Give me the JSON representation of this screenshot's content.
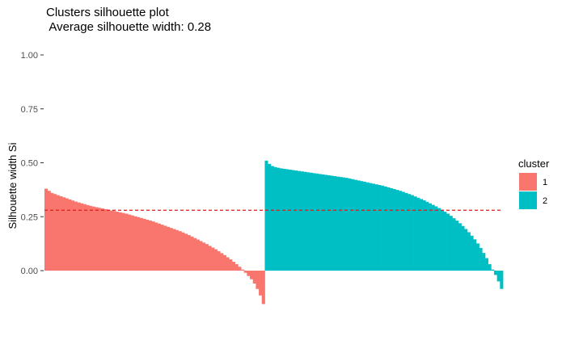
{
  "chart_data": {
    "type": "bar",
    "title": "Clusters silhouette plot",
    "subtitle": " Average silhouette width: 0.28",
    "xlabel": "",
    "ylabel": "Silhouette width Si",
    "ylim": [
      -0.2,
      1.0
    ],
    "yticks": [
      "0.00",
      "0.25",
      "0.50",
      "0.75",
      "1.00"
    ],
    "ytick_values": [
      0.0,
      0.25,
      0.5,
      0.75,
      1.0
    ],
    "grid": false,
    "reference_line": {
      "value": 0.28,
      "style": "dashed",
      "color": "#e41a1c"
    },
    "legend": {
      "title": "cluster",
      "placement": "right"
    },
    "series": [
      {
        "name": "1",
        "color": "#F8766D",
        "values": [
          0.38,
          0.37,
          0.36,
          0.355,
          0.35,
          0.345,
          0.34,
          0.335,
          0.33,
          0.325,
          0.32,
          0.316,
          0.312,
          0.308,
          0.304,
          0.3,
          0.297,
          0.294,
          0.291,
          0.288,
          0.285,
          0.282,
          0.279,
          0.276,
          0.273,
          0.27,
          0.267,
          0.264,
          0.26,
          0.256,
          0.252,
          0.248,
          0.244,
          0.24,
          0.236,
          0.232,
          0.228,
          0.223,
          0.218,
          0.213,
          0.208,
          0.203,
          0.198,
          0.193,
          0.188,
          0.183,
          0.177,
          0.171,
          0.165,
          0.158,
          0.151,
          0.144,
          0.137,
          0.13,
          0.123,
          0.115,
          0.107,
          0.099,
          0.09,
          0.081,
          0.072,
          0.062,
          0.052,
          0.041,
          0.03,
          0.018,
          0.005,
          -0.01,
          -0.025,
          -0.04,
          -0.06,
          -0.085,
          -0.115,
          -0.155
        ]
      },
      {
        "name": "2",
        "color": "#00BFC4",
        "values": [
          0.51,
          0.495,
          0.485,
          0.48,
          0.477,
          0.474,
          0.472,
          0.47,
          0.468,
          0.466,
          0.464,
          0.462,
          0.46,
          0.458,
          0.456,
          0.454,
          0.452,
          0.45,
          0.448,
          0.446,
          0.444,
          0.442,
          0.44,
          0.438,
          0.436,
          0.434,
          0.432,
          0.43,
          0.427,
          0.424,
          0.421,
          0.418,
          0.415,
          0.412,
          0.409,
          0.406,
          0.403,
          0.4,
          0.397,
          0.394,
          0.39,
          0.386,
          0.382,
          0.378,
          0.374,
          0.37,
          0.365,
          0.36,
          0.355,
          0.35,
          0.344,
          0.338,
          0.332,
          0.326,
          0.319,
          0.312,
          0.305,
          0.298,
          0.29,
          0.282,
          0.273,
          0.264,
          0.254,
          0.243,
          0.232,
          0.22,
          0.207,
          0.193,
          0.178,
          0.162,
          0.145,
          0.126,
          0.105,
          0.082,
          0.058,
          0.03,
          0.005,
          -0.02,
          -0.05,
          -0.085
        ]
      }
    ]
  }
}
